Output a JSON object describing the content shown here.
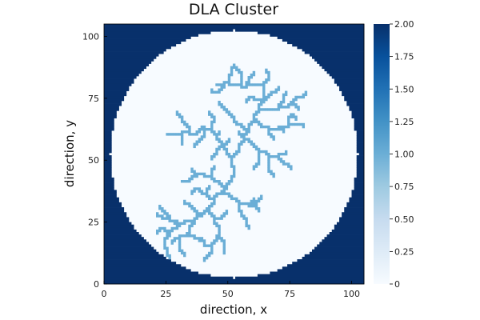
{
  "chart_data": {
    "type": "heatmap",
    "title": "DLA Cluster",
    "xlabel": "direction, x",
    "ylabel": "direction, y",
    "xlim": [
      0,
      105
    ],
    "ylim": [
      0,
      105
    ],
    "x_ticks": [
      0,
      25,
      50,
      75,
      100
    ],
    "y_ticks": [
      0,
      25,
      50,
      75,
      100
    ],
    "grid": false,
    "colormap": "Blues",
    "clim": [
      0,
      2
    ],
    "colorbar_ticks": [
      "0",
      "0.25",
      "0.50",
      "0.75",
      "1.00",
      "1.25",
      "1.50",
      "1.75",
      "2.00"
    ],
    "grid_size": 105,
    "domain": {
      "shape": "circle",
      "center": [
        52.5,
        52.5
      ],
      "radius": 50,
      "value_inside": 0,
      "value_outside": 2
    },
    "cluster_value": 1,
    "cluster_branches": [
      [
        [
          51,
          50
        ],
        [
          49,
          53
        ],
        [
          47,
          56
        ],
        [
          45,
          59
        ],
        [
          43,
          62
        ],
        [
          40,
          63
        ]
      ],
      [
        [
          40,
          63
        ],
        [
          37,
          60
        ],
        [
          34,
          61
        ],
        [
          31,
          60
        ],
        [
          28,
          60
        ],
        [
          25,
          60
        ]
      ],
      [
        [
          34,
          61
        ],
        [
          33,
          64
        ],
        [
          31,
          66
        ],
        [
          29,
          69
        ]
      ],
      [
        [
          43,
          62
        ],
        [
          44,
          66
        ],
        [
          42,
          69
        ]
      ],
      [
        [
          31,
          60
        ],
        [
          31,
          56
        ]
      ],
      [
        [
          40,
          63
        ],
        [
          38,
          57
        ],
        [
          36,
          55
        ]
      ],
      [
        [
          47,
          56
        ],
        [
          45,
          53
        ],
        [
          43,
          50
        ]
      ],
      [
        [
          51,
          50
        ],
        [
          54,
          54
        ],
        [
          56,
          58
        ],
        [
          58,
          62
        ],
        [
          60,
          66
        ],
        [
          62,
          70
        ],
        [
          64,
          74
        ],
        [
          64,
          80
        ]
      ],
      [
        [
          58,
          62
        ],
        [
          55,
          64
        ],
        [
          52,
          66
        ],
        [
          50,
          69
        ]
      ],
      [
        [
          56,
          58
        ],
        [
          59,
          56
        ],
        [
          62,
          53
        ],
        [
          66,
          51
        ],
        [
          70,
          52
        ],
        [
          73,
          53
        ]
      ],
      [
        [
          66,
          51
        ],
        [
          66,
          46
        ],
        [
          68,
          43
        ]
      ],
      [
        [
          70,
          52
        ],
        [
          72,
          48
        ],
        [
          75,
          46
        ]
      ],
      [
        [
          62,
          53
        ],
        [
          62,
          49
        ],
        [
          60,
          46
        ]
      ],
      [
        [
          60,
          66
        ],
        [
          63,
          63
        ],
        [
          66,
          62
        ],
        [
          70,
          63
        ],
        [
          74,
          64
        ]
      ],
      [
        [
          70,
          63
        ],
        [
          72,
          61
        ]
      ],
      [
        [
          66,
          62
        ],
        [
          68,
          58
        ]
      ],
      [
        [
          74,
          64
        ],
        [
          78,
          64
        ],
        [
          80,
          63
        ]
      ],
      [
        [
          74,
          64
        ],
        [
          75,
          68
        ],
        [
          77,
          66
        ]
      ],
      [
        [
          62,
          70
        ],
        [
          66,
          70
        ],
        [
          70,
          71
        ],
        [
          74,
          72
        ],
        [
          78,
          70
        ]
      ],
      [
        [
          70,
          71
        ],
        [
          72,
          74
        ],
        [
          73,
          77
        ]
      ],
      [
        [
          74,
          72
        ],
        [
          77,
          75
        ],
        [
          81,
          77
        ]
      ],
      [
        [
          64,
          74
        ],
        [
          67,
          77
        ],
        [
          70,
          79
        ]
      ],
      [
        [
          64,
          80
        ],
        [
          66,
          83
        ],
        [
          65,
          86
        ]
      ],
      [
        [
          64,
          80
        ],
        [
          60,
          80
        ],
        [
          57,
          79
        ],
        [
          55,
          80
        ],
        [
          55,
          84
        ],
        [
          53,
          87
        ]
      ],
      [
        [
          57,
          79
        ],
        [
          58,
          82
        ],
        [
          60,
          85
        ]
      ],
      [
        [
          55,
          80
        ],
        [
          50,
          81
        ],
        [
          48,
          80
        ],
        [
          45,
          80
        ]
      ],
      [
        [
          50,
          81
        ],
        [
          51,
          85
        ],
        [
          52,
          88
        ]
      ],
      [
        [
          48,
          80
        ],
        [
          46,
          77
        ],
        [
          43,
          78
        ]
      ],
      [
        [
          64,
          74
        ],
        [
          60,
          75
        ],
        [
          57,
          73
        ]
      ],
      [
        [
          50,
          69
        ],
        [
          48,
          71
        ],
        [
          46,
          73
        ]
      ],
      [
        [
          56,
          58
        ],
        [
          54,
          61
        ]
      ],
      [
        [
          45,
          59
        ],
        [
          46,
          61
        ]
      ],
      [
        [
          51,
          50
        ],
        [
          52,
          46
        ],
        [
          51,
          42
        ],
        [
          49,
          39
        ],
        [
          47,
          36
        ],
        [
          44,
          34
        ],
        [
          42,
          30
        ],
        [
          39,
          27
        ],
        [
          36,
          25
        ],
        [
          32,
          24
        ],
        [
          29,
          22
        ],
        [
          26,
          20
        ],
        [
          24,
          17
        ]
      ],
      [
        [
          49,
          39
        ],
        [
          46,
          41
        ],
        [
          43,
          43
        ],
        [
          40,
          44
        ],
        [
          37,
          43
        ],
        [
          34,
          41
        ],
        [
          31,
          41
        ]
      ],
      [
        [
          37,
          43
        ],
        [
          35,
          46
        ]
      ],
      [
        [
          43,
          43
        ],
        [
          44,
          47
        ]
      ],
      [
        [
          47,
          36
        ],
        [
          51,
          34
        ],
        [
          54,
          32
        ],
        [
          58,
          31
        ],
        [
          62,
          29
        ]
      ],
      [
        [
          54,
          32
        ],
        [
          55,
          28
        ],
        [
          57,
          25
        ],
        [
          58,
          22
        ]
      ],
      [
        [
          58,
          31
        ],
        [
          60,
          34
        ]
      ],
      [
        [
          44,
          34
        ],
        [
          41,
          36
        ],
        [
          38,
          38
        ],
        [
          35,
          36
        ]
      ],
      [
        [
          41,
          36
        ],
        [
          42,
          39
        ]
      ],
      [
        [
          39,
          27
        ],
        [
          36,
          30
        ],
        [
          34,
          32
        ]
      ],
      [
        [
          36,
          25
        ],
        [
          34,
          22
        ],
        [
          33,
          19
        ],
        [
          30,
          18
        ],
        [
          27,
          16
        ]
      ],
      [
        [
          32,
          24
        ],
        [
          29,
          25
        ],
        [
          26,
          26
        ],
        [
          23,
          27
        ],
        [
          21,
          28
        ]
      ],
      [
        [
          26,
          26
        ],
        [
          24,
          29
        ],
        [
          22,
          31
        ]
      ],
      [
        [
          29,
          22
        ],
        [
          28,
          25
        ]
      ],
      [
        [
          26,
          20
        ],
        [
          24,
          22
        ],
        [
          21,
          20
        ]
      ],
      [
        [
          24,
          17
        ],
        [
          25,
          13
        ],
        [
          26,
          10
        ]
      ],
      [
        [
          42,
          30
        ],
        [
          44,
          26
        ],
        [
          46,
          22
        ],
        [
          45,
          18
        ],
        [
          43,
          15
        ],
        [
          42,
          11
        ],
        [
          40,
          9
        ]
      ],
      [
        [
          45,
          18
        ],
        [
          48,
          16
        ],
        [
          48,
          12
        ]
      ],
      [
        [
          43,
          15
        ],
        [
          40,
          15
        ],
        [
          39,
          18
        ]
      ],
      [
        [
          44,
          26
        ],
        [
          47,
          27
        ],
        [
          49,
          29
        ]
      ],
      [
        [
          33,
          19
        ],
        [
          36,
          18
        ],
        [
          38,
          17
        ]
      ],
      [
        [
          30,
          18
        ],
        [
          30,
          14
        ],
        [
          32,
          11
        ]
      ],
      [
        [
          34,
          32
        ],
        [
          32,
          33
        ]
      ],
      [
        [
          58,
          31
        ],
        [
          61,
          33
        ],
        [
          63,
          35
        ]
      ],
      [
        [
          47,
          56
        ],
        [
          50,
          58
        ]
      ]
    ]
  }
}
